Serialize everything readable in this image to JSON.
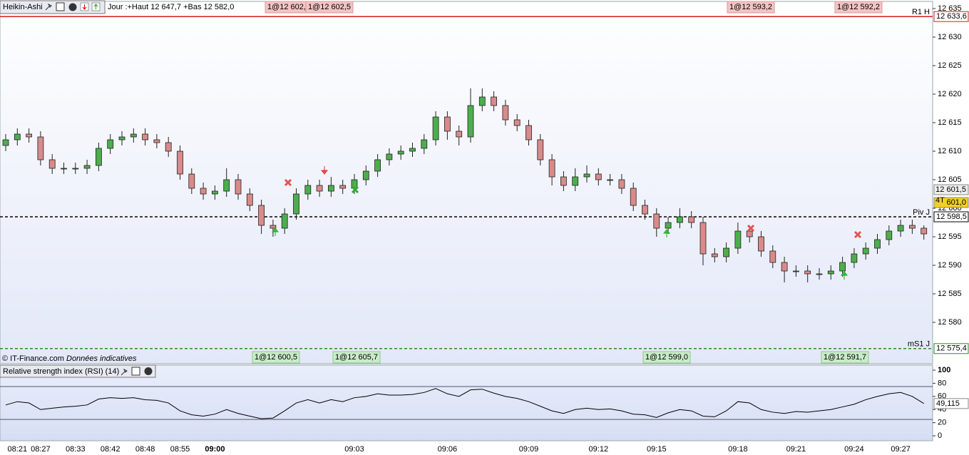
{
  "toolbar": {
    "title": "Heikin-Ashi",
    "info": "Jour :+Haut 12 647,7 +Bas 12 582,0"
  },
  "footer": {
    "copyright": "© IT-Finance.com",
    "note": "Données indicatives"
  },
  "orders_top": [
    "1@12 602,5",
    "1@12 602,5",
    "1@12 593,2",
    "1@12 592,2"
  ],
  "orders_bottom": [
    "1@12 600,5",
    "1@12 605,7",
    "1@12 599,0",
    "1@12 591,7"
  ],
  "chart_data": [
    {
      "type": "candlestick",
      "title": "Heikin-Ashi",
      "up_color": "#4cae4c",
      "down_color": "#d98a8a",
      "categories": [
        null,
        "08:21",
        null,
        "08:27",
        null,
        null,
        "08:33",
        null,
        null,
        "08:42",
        null,
        null,
        "08:48",
        null,
        null,
        "08:55",
        null,
        null,
        "09:00",
        null,
        null,
        null,
        null,
        null,
        null,
        null,
        null,
        null,
        null,
        null,
        "09:03",
        null,
        null,
        null,
        null,
        null,
        null,
        null,
        "09:06",
        null,
        null,
        null,
        null,
        null,
        null,
        "09:09",
        null,
        null,
        null,
        null,
        null,
        "09:12",
        null,
        null,
        null,
        null,
        "09:15",
        null,
        null,
        null,
        null,
        null,
        null,
        "09:18",
        null,
        null,
        null,
        null,
        "09:21",
        null,
        null,
        null,
        null,
        "09:24",
        null,
        null,
        null,
        "09:27",
        null,
        null
      ],
      "open": [
        12611,
        12612,
        12613,
        12612.5,
        12608.5,
        12607,
        12607,
        12607,
        12607.5,
        12610.5,
        12612,
        12612.5,
        12613,
        12612,
        12611.5,
        12610,
        12606,
        12603.5,
        12602.5,
        12603,
        12605,
        12602.5,
        12600.5,
        12597,
        12596.5,
        12599,
        12602.5,
        12604,
        12603,
        12604,
        12603.5,
        12605,
        12606.5,
        12608.5,
        12609.5,
        12610,
        12610.5,
        12612,
        12616,
        12613.5,
        12612.5,
        12618,
        12619.5,
        12618,
        12615.5,
        12614.5,
        12612,
        12608.5,
        12605.5,
        12604,
        12605.5,
        12606,
        12605,
        12605,
        12603.5,
        12600.5,
        12599,
        12596.5,
        12597.5,
        12598.5,
        12597.5,
        12592,
        12591.5,
        12593,
        12596,
        12595,
        12592.5,
        12590.5,
        12589,
        12589,
        12588.5,
        12588.5,
        12589,
        12590.5,
        12592,
        12593,
        12594.5,
        12596,
        12597,
        12596.5
      ],
      "high": [
        12613,
        12614,
        12614,
        12613.5,
        12609.5,
        12608,
        12608,
        12608.5,
        12611.5,
        12613,
        12613.5,
        12614,
        12614,
        12613,
        12612.5,
        12611,
        12607,
        12604.5,
        12604,
        12607,
        12606,
        12603.5,
        12601.5,
        12598,
        12600,
        12603.5,
        12605,
        12605,
        12605.5,
        12605,
        12606,
        12607.5,
        12609.5,
        12610.5,
        12611,
        12611.5,
        12613,
        12617,
        12617,
        12614.5,
        12621,
        12621,
        12620.5,
        12619,
        12616.5,
        12615.5,
        12613,
        12609.5,
        12606.5,
        12607,
        12607.5,
        12607,
        12606,
        12606,
        12604.5,
        12601.5,
        12600,
        12598.5,
        12600,
        12599.5,
        12598.5,
        12593,
        12594,
        12597.5,
        12597,
        12596,
        12593.5,
        12591.5,
        12590,
        12590,
        12589.5,
        12590,
        12591.5,
        12593,
        12594,
        12595.5,
        12597,
        12598,
        12598,
        12597
      ],
      "low": [
        12610,
        12611,
        12611.5,
        12607.5,
        12606,
        12606,
        12606,
        12606,
        12606.5,
        12609.5,
        12611,
        12611.5,
        12611,
        12610.5,
        12609,
        12605,
        12602.5,
        12601.5,
        12601.5,
        12602,
        12601.5,
        12599.5,
        12595.5,
        12595,
        12595.5,
        12598,
        12601.5,
        12602,
        12602,
        12602.5,
        12602.5,
        12604,
        12605.5,
        12607.5,
        12608.5,
        12609,
        12609.5,
        12611,
        12612,
        12611,
        12611.5,
        12617,
        12617,
        12614.5,
        12613.5,
        12611,
        12607.5,
        12604,
        12603,
        12603,
        12604.5,
        12604,
        12604,
        12602.5,
        12599.5,
        12598,
        12595,
        12595.5,
        12596.5,
        12596.5,
        12590,
        12590.5,
        12590.5,
        12592,
        12594,
        12591.5,
        12589.5,
        12587,
        12588,
        12587,
        12587.5,
        12587.5,
        12588,
        12589.5,
        12591,
        12592,
        12593.5,
        12595,
        12595.5,
        12594.5
      ],
      "close": [
        12612,
        12613,
        12612.5,
        12608.5,
        12607,
        12607,
        12607,
        12607.5,
        12610.5,
        12612,
        12612.5,
        12613,
        12612,
        12611.5,
        12610,
        12606,
        12603.5,
        12602.5,
        12603,
        12605,
        12602.5,
        12600.5,
        12597,
        12596.5,
        12599,
        12602.5,
        12604,
        12603,
        12604,
        12603.5,
        12605,
        12606.5,
        12608.5,
        12609.5,
        12610,
        12610.5,
        12612,
        12616,
        12613.5,
        12612.5,
        12618,
        12619.5,
        12618,
        12615.5,
        12614.5,
        12612,
        12608.5,
        12605.5,
        12604,
        12605.5,
        12606,
        12605,
        12605,
        12603.5,
        12600.5,
        12599,
        12596.5,
        12597.5,
        12598.5,
        12597.5,
        12592,
        12591.5,
        12593,
        12596,
        12595,
        12592.5,
        12590.5,
        12589,
        12589,
        12588.5,
        12588.5,
        12589,
        12590.5,
        12592,
        12593,
        12594.5,
        12596,
        12597,
        12596.5,
        12595.5
      ],
      "ylim": [
        12572.75,
        12636.25
      ],
      "yticks": [
        {
          "value": 12580,
          "label": "12 580"
        },
        {
          "value": 12585,
          "label": "12 585"
        },
        {
          "value": 12590,
          "label": "12 590"
        },
        {
          "value": 12595,
          "label": "12 595"
        },
        {
          "value": 12600,
          "label": "12 600"
        },
        {
          "value": 12605,
          "label": "12 605"
        },
        {
          "value": 12610,
          "label": "12 610"
        },
        {
          "value": 12615,
          "label": "12 615"
        },
        {
          "value": 12620,
          "label": "12 620"
        },
        {
          "value": 12625,
          "label": "12 625"
        },
        {
          "value": 12630,
          "label": "12 630"
        },
        {
          "value": 12635,
          "label": "12 635"
        }
      ],
      "levels": [
        {
          "name": "R1 H",
          "value": 12633.6,
          "label": "12 633,6",
          "color": "#d42020",
          "dashed": false
        },
        {
          "name": "Piv J",
          "value": 12598.5,
          "label": "12 598,5",
          "color": "#000000",
          "dashed": true
        },
        {
          "name": "mS1 J",
          "value": 12575.4,
          "label": "12 575,4",
          "color": "#2a8a2a",
          "dashed": true
        }
      ],
      "price_tags": [
        {
          "value": 12601.5,
          "label": "12 601,5",
          "color": "#eeeeee"
        },
        {
          "value": 12601,
          "label": "601,0",
          "color": "#f2d01e",
          "prefix": "4T"
        }
      ]
    },
    {
      "type": "line",
      "title": "Relative strength index (RSI) (14)",
      "color": "#000000",
      "values": [
        47,
        52,
        50,
        40,
        42,
        44,
        45,
        47,
        56,
        58,
        57,
        58,
        55,
        54,
        50,
        38,
        32,
        30,
        33,
        40,
        34,
        30,
        26,
        27,
        38,
        50,
        55,
        50,
        55,
        52,
        58,
        60,
        64,
        62,
        62,
        63,
        66,
        72,
        64,
        60,
        70,
        71,
        65,
        60,
        57,
        52,
        45,
        38,
        34,
        40,
        42,
        40,
        41,
        38,
        33,
        32,
        28,
        35,
        40,
        38,
        30,
        29,
        38,
        52,
        50,
        40,
        36,
        34,
        37,
        36,
        38,
        40,
        44,
        48,
        55,
        60,
        64,
        66,
        60,
        49.115
      ],
      "value_labels": [
        null,
        null,
        null,
        null,
        null,
        null,
        null,
        null,
        null,
        null,
        null,
        null,
        null,
        null,
        null,
        null,
        null,
        null,
        null,
        null,
        null,
        null,
        null,
        null,
        null,
        null,
        null,
        null,
        null,
        null,
        null,
        null,
        null,
        null,
        null,
        null,
        null,
        null,
        null,
        null,
        null,
        null,
        null,
        null,
        null,
        null,
        null,
        null,
        null,
        null,
        null,
        null,
        null,
        null,
        null,
        null,
        null,
        null,
        null,
        null,
        null,
        null,
        null,
        null,
        null,
        null,
        null,
        null,
        null,
        null,
        null,
        null,
        null,
        null,
        null,
        null,
        null,
        null,
        null,
        "49,115"
      ],
      "ylim": [
        -7.5,
        100
      ],
      "yticks": [
        0,
        20,
        40,
        60,
        80,
        100
      ],
      "bands": [
        75,
        25
      ]
    }
  ]
}
